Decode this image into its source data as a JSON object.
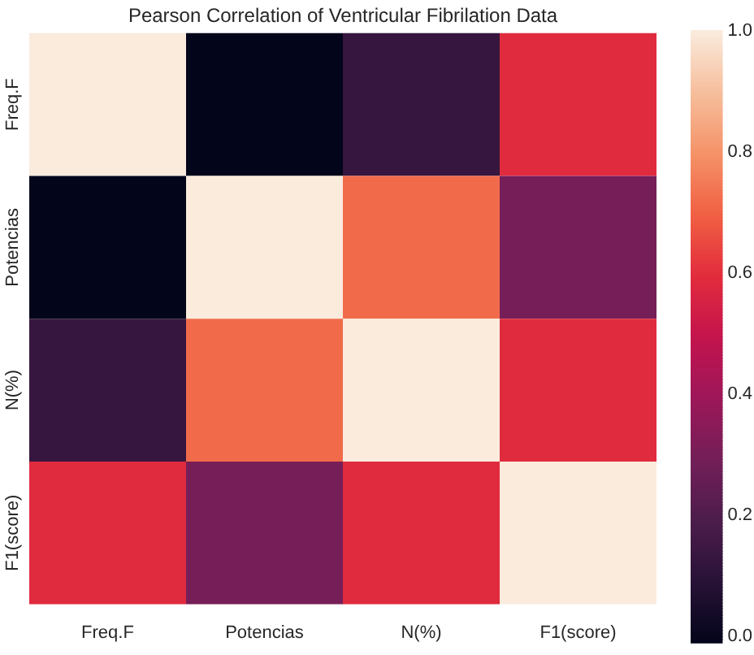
{
  "chart_data": {
    "type": "heatmap",
    "title": "Pearson Correlation of Ventricular Fibrilation Data",
    "categories": [
      "Freq.F",
      "Potencias",
      "N(%)",
      "F1(score)"
    ],
    "y_categories": [
      "Freq.F",
      "Potencias",
      "N(%)",
      "F1(score)"
    ],
    "cells": [
      [
        1.0,
        -0.01,
        0.13,
        0.59
      ],
      [
        -0.01,
        1.0,
        0.72,
        0.3
      ],
      [
        0.13,
        0.72,
        1.0,
        0.59
      ],
      [
        0.59,
        0.3,
        0.59,
        1.0
      ]
    ],
    "clim": [
      -0.01,
      1.0
    ],
    "cticks": [
      {
        "value": 0.0,
        "label": "0.0"
      },
      {
        "value": 0.2,
        "label": "0.2"
      },
      {
        "value": 0.4,
        "label": "0.4"
      },
      {
        "value": 0.6,
        "label": "0.6"
      },
      {
        "value": 0.8,
        "label": "0.8"
      },
      {
        "value": 1.0,
        "label": "1.0"
      }
    ]
  }
}
